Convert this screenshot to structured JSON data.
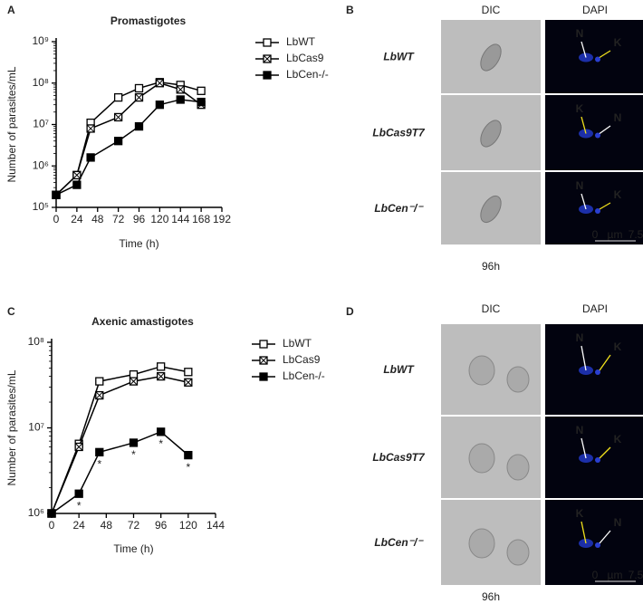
{
  "panel_labels": [
    "A",
    "B",
    "C",
    "D"
  ],
  "chart_data": [
    {
      "type": "line",
      "title": "Promastigotes",
      "xlabel": "Time (h)",
      "ylabel": "Number of parasites/mL",
      "log_y": true,
      "xlim": [
        0,
        192
      ],
      "xticks": [
        0,
        24,
        48,
        72,
        96,
        120,
        144,
        168,
        192
      ],
      "ylim": [
        100000,
        1000000000
      ],
      "yticks": [
        {
          "value": 100000,
          "label": "10⁵"
        },
        {
          "value": 1000000,
          "label": "10⁶"
        },
        {
          "value": 10000000,
          "label": "10⁷"
        },
        {
          "value": 100000000,
          "label": "10⁸"
        },
        {
          "value": 1000000000,
          "label": "10⁹"
        }
      ],
      "x": [
        0,
        24,
        40,
        72,
        96,
        120,
        144,
        168
      ],
      "series": [
        {
          "name": "LbWT",
          "color": "#000000",
          "marker": "open-square",
          "values": [
            200000,
            600000,
            11000000,
            45000000,
            75000000,
            105000000,
            90000000,
            65000000
          ]
        },
        {
          "name": "LbCas9",
          "color": "#000000",
          "marker": "crossed-square",
          "values": [
            200000,
            600000,
            8000000,
            15000000,
            45000000,
            100000000,
            70000000,
            30000000
          ]
        },
        {
          "name": "LbCen-/-",
          "color": "#000000",
          "marker": "filled-square",
          "values": [
            200000,
            350000,
            1600000,
            4000000,
            9000000,
            30000000,
            40000000,
            35000000
          ]
        }
      ]
    },
    {
      "type": "line",
      "title": "Axenic amastigotes",
      "xlabel": "Time (h)",
      "ylabel": "Number of parasites/mL",
      "log_y": true,
      "xlim": [
        0,
        144
      ],
      "xticks": [
        0,
        24,
        48,
        72,
        96,
        120,
        144
      ],
      "ylim": [
        1000000,
        100000000
      ],
      "yticks": [
        {
          "value": 1000000,
          "label": "10⁶"
        },
        {
          "value": 10000000,
          "label": "10⁷"
        },
        {
          "value": 100000000,
          "label": "10⁸"
        }
      ],
      "x": [
        0,
        24,
        42,
        72,
        96,
        120
      ],
      "series": [
        {
          "name": "LbWT",
          "color": "#000000",
          "marker": "open-square",
          "values": [
            1000000,
            6500000,
            35000000,
            42000000,
            52000000,
            45000000
          ]
        },
        {
          "name": "LbCas9",
          "color": "#000000",
          "marker": "crossed-square",
          "values": [
            1000000,
            6000000,
            24000000,
            35000000,
            40000000,
            34000000
          ]
        },
        {
          "name": "LbCen-/-",
          "color": "#000000",
          "marker": "filled-square",
          "values": [
            1000000,
            1700000,
            5200000,
            6700000,
            9000000,
            4800000
          ],
          "significance": [
            null,
            "*",
            "*",
            "*",
            "*",
            "*"
          ]
        }
      ]
    }
  ],
  "micrographs": [
    {
      "columns": [
        "DIC",
        "DAPI"
      ],
      "rows": [
        "LbWT",
        "LbCas9T7",
        "LbCen⁻/⁻"
      ],
      "timepoint": "96h",
      "markers": [
        [
          "N",
          "K"
        ],
        [
          "K",
          "N"
        ],
        [
          "N",
          "K"
        ]
      ],
      "scale": [
        "0",
        "µm",
        "7.5"
      ]
    },
    {
      "columns": [
        "DIC",
        "DAPI"
      ],
      "rows": [
        "LbWT",
        "LbCas9T7",
        "LbCen⁻/⁻"
      ],
      "timepoint": "96h",
      "markers": [
        [
          "N",
          "K"
        ],
        [
          "N",
          "K"
        ],
        [
          "K",
          "N"
        ]
      ],
      "scale": [
        "0",
        "µm",
        "7.5"
      ]
    }
  ],
  "marker_colors": {
    "N": "#ffffff",
    "K": "#f2e21c"
  }
}
